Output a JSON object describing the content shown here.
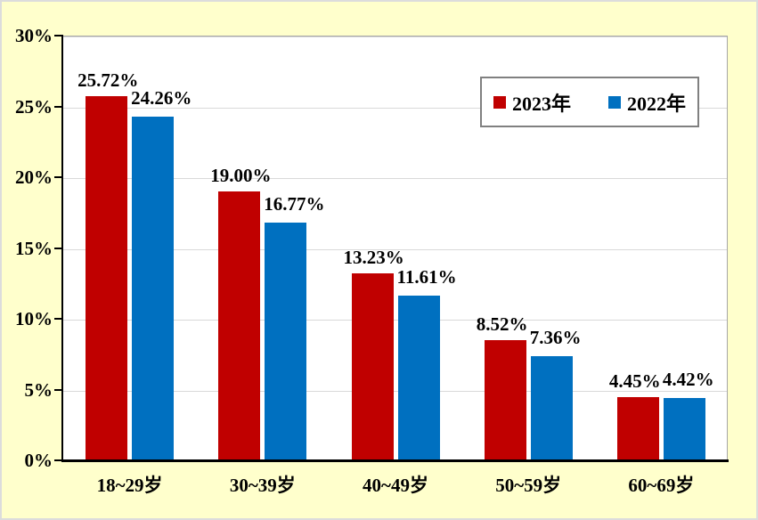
{
  "chart_data": {
    "type": "bar",
    "title": "",
    "categories": [
      "18~29岁",
      "30~39岁",
      "40~49岁",
      "50~59岁",
      "60~69岁"
    ],
    "series": [
      {
        "name": "2023年",
        "color": "#C00000",
        "values": [
          25.72,
          19.0,
          13.23,
          8.52,
          4.45
        ]
      },
      {
        "name": "2022年",
        "color": "#0070C0",
        "values": [
          24.26,
          16.77,
          11.61,
          7.36,
          4.42
        ]
      }
    ],
    "data_label_format": "percent-2dp",
    "ylim": [
      0,
      30
    ],
    "ytick_step": 5,
    "ytick_labels": [
      "0%",
      "5%",
      "10%",
      "15%",
      "20%",
      "25%",
      "30%"
    ],
    "xlabel": "",
    "ylabel": "",
    "grid": true,
    "legend_position": "top-right"
  },
  "colors": {
    "background": "#FFFFCC",
    "plot_background": "#FFFFFF",
    "gridline": "#D9D9D9",
    "axis": "#000000",
    "plot_border": "#A6A6A6",
    "legend_border": "#808080",
    "text": "#000000"
  }
}
